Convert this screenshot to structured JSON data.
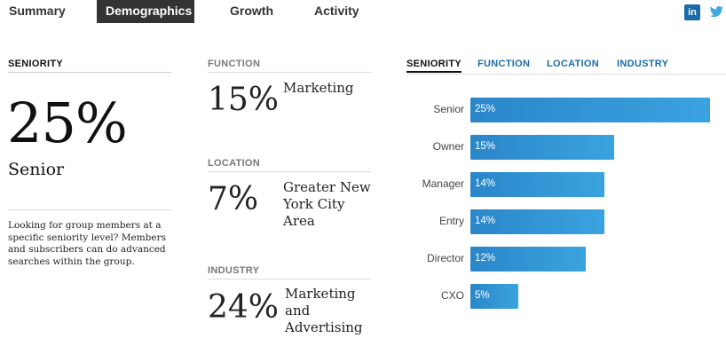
{
  "tabs": [
    {
      "label": "Summary"
    },
    {
      "label": "Demographics"
    },
    {
      "label": "Growth"
    },
    {
      "label": "Activity"
    }
  ],
  "share": {
    "linkedin_glyph": "in",
    "icons": [
      "linkedin-icon",
      "twitter-icon"
    ]
  },
  "seniority": {
    "heading": "SENIORITY",
    "top_pct": "25%",
    "top_label": "Senior",
    "blurb": "Looking for group members at a specific seniority level? Members and subscribers can do advanced searches within the group."
  },
  "function": {
    "heading": "FUNCTION",
    "pct": "15%",
    "label": "Marketing"
  },
  "location": {
    "heading": "LOCATION",
    "pct": "7%",
    "label": "Greater New York City Area"
  },
  "industry": {
    "heading": "INDUSTRY",
    "pct": "24%",
    "label": "Marketing and Advertising"
  },
  "chart_tabs": [
    {
      "label": "SENIORITY"
    },
    {
      "label": "FUNCTION"
    },
    {
      "label": "LOCATION"
    },
    {
      "label": "INDUSTRY"
    }
  ],
  "chart_data": {
    "type": "bar",
    "orientation": "horizontal",
    "categories": [
      "Senior",
      "Owner",
      "Manager",
      "Entry",
      "Director",
      "CXO"
    ],
    "values": [
      25,
      15,
      14,
      14,
      12,
      5
    ],
    "value_labels": [
      "25%",
      "15%",
      "14%",
      "14%",
      "12%",
      "5%"
    ],
    "xlim": [
      0,
      25
    ],
    "color": "#2a86c9",
    "grid": false
  }
}
